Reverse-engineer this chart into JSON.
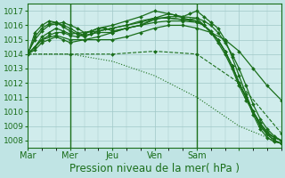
{
  "title": "",
  "xlabel": "Pression niveau de la mer( hPa )",
  "ylabel": "",
  "bg_color": "#c0e4e4",
  "plot_bg_color": "#d0ecec",
  "grid_color": "#a0c8c8",
  "line_color": "#1a6e1a",
  "xlim": [
    0,
    108
  ],
  "ylim": [
    1007.5,
    1017.5
  ],
  "yticks": [
    1008,
    1009,
    1010,
    1011,
    1012,
    1013,
    1014,
    1015,
    1016,
    1017
  ],
  "xtick_positions": [
    0,
    18,
    36,
    54,
    72,
    90
  ],
  "xtick_labels": [
    "Mar",
    "Mer",
    "Jeu",
    "Ven",
    "Sam",
    ""
  ],
  "vline_positions": [
    18,
    72
  ],
  "series": [
    {
      "x": [
        0,
        3,
        6,
        9,
        12,
        15,
        18,
        21,
        24,
        27,
        30,
        33,
        36,
        42,
        48,
        54,
        60,
        63,
        66,
        69,
        72,
        75,
        78,
        81,
        84,
        87,
        90,
        93,
        96,
        99,
        102,
        105,
        108
      ],
      "y": [
        1014.1,
        1015.0,
        1015.6,
        1016.0,
        1016.1,
        1016.2,
        1016.0,
        1015.8,
        1015.5,
        1015.6,
        1015.8,
        1015.8,
        1015.6,
        1015.8,
        1016.0,
        1016.5,
        1016.8,
        1016.7,
        1016.5,
        1016.4,
        1016.5,
        1016.0,
        1015.5,
        1015.0,
        1014.2,
        1013.2,
        1012.0,
        1011.0,
        1010.0,
        1009.2,
        1008.6,
        1008.2,
        1008.0
      ],
      "style": "-",
      "marker": "D",
      "markersize": 2.0,
      "lw": 0.9
    },
    {
      "x": [
        0,
        3,
        6,
        9,
        12,
        15,
        18,
        21,
        24,
        27,
        30,
        36,
        42,
        48,
        54,
        60,
        63,
        66,
        69,
        72,
        75,
        78,
        81,
        84,
        87,
        90,
        93,
        96,
        99,
        102,
        105,
        108
      ],
      "y": [
        1014.0,
        1014.5,
        1015.0,
        1015.3,
        1015.5,
        1015.5,
        1015.3,
        1015.2,
        1015.4,
        1015.6,
        1015.8,
        1016.0,
        1016.3,
        1016.6,
        1017.0,
        1016.8,
        1016.7,
        1016.6,
        1016.8,
        1017.0,
        1016.6,
        1016.2,
        1015.8,
        1015.0,
        1013.8,
        1012.5,
        1011.2,
        1010.0,
        1009.0,
        1008.5,
        1008.2,
        1008.0
      ],
      "style": "-",
      "marker": "D",
      "markersize": 2.0,
      "lw": 0.9
    },
    {
      "x": [
        0,
        3,
        6,
        9,
        12,
        15,
        18,
        24,
        30,
        36,
        42,
        48,
        54,
        60,
        66,
        72,
        75,
        78,
        81,
        84,
        87,
        90,
        93,
        96,
        99,
        102,
        105,
        108
      ],
      "y": [
        1014.0,
        1014.3,
        1014.8,
        1015.0,
        1015.2,
        1015.0,
        1014.8,
        1015.0,
        1015.2,
        1015.5,
        1015.8,
        1016.0,
        1016.4,
        1016.6,
        1016.6,
        1016.5,
        1016.3,
        1016.0,
        1015.5,
        1014.8,
        1014.0,
        1013.0,
        1011.8,
        1010.5,
        1009.5,
        1008.8,
        1008.3,
        1008.0
      ],
      "style": "-",
      "marker": "D",
      "markersize": 2.0,
      "lw": 0.9
    },
    {
      "x": [
        0,
        3,
        6,
        9,
        12,
        15,
        18,
        24,
        30,
        36,
        42,
        48,
        54,
        60,
        66,
        72,
        75,
        78,
        81,
        84,
        87,
        90,
        93,
        96,
        99,
        102,
        105,
        108
      ],
      "y": [
        1014.0,
        1014.5,
        1015.2,
        1015.5,
        1015.8,
        1015.6,
        1015.4,
        1015.5,
        1015.6,
        1015.8,
        1016.0,
        1016.3,
        1016.5,
        1016.5,
        1016.4,
        1016.3,
        1016.0,
        1015.5,
        1014.8,
        1014.0,
        1013.0,
        1011.8,
        1010.8,
        1010.0,
        1009.2,
        1008.5,
        1008.0,
        1007.8
      ],
      "style": "-",
      "marker": "D",
      "markersize": 2.0,
      "lw": 0.9
    },
    {
      "x": [
        0,
        6,
        12,
        18,
        24,
        30,
        36,
        42,
        48,
        54,
        60,
        66,
        72,
        78,
        84,
        90,
        96,
        102,
        108
      ],
      "y": [
        1014.0,
        1015.0,
        1015.3,
        1015.0,
        1015.0,
        1015.0,
        1015.0,
        1015.2,
        1015.5,
        1015.8,
        1016.0,
        1016.0,
        1015.8,
        1015.5,
        1015.0,
        1014.2,
        1013.0,
        1011.8,
        1010.8
      ],
      "style": "-",
      "marker": "D",
      "markersize": 2.0,
      "lw": 0.9
    },
    {
      "x": [
        0,
        18,
        36,
        54,
        72,
        90,
        108
      ],
      "y": [
        1014.0,
        1014.0,
        1014.0,
        1014.2,
        1014.0,
        1012.0,
        1008.5
      ],
      "style": "--",
      "marker": "D",
      "markersize": 2.0,
      "lw": 0.8
    },
    {
      "x": [
        0,
        18,
        36,
        54,
        72,
        90,
        108
      ],
      "y": [
        1014.0,
        1014.0,
        1013.5,
        1012.5,
        1011.0,
        1009.0,
        1007.8
      ],
      "style": ":",
      "marker": null,
      "markersize": 0,
      "lw": 0.8
    },
    {
      "x": [
        0,
        3,
        6,
        9,
        12,
        15,
        18,
        21,
        24,
        27,
        30,
        36,
        42,
        48,
        54,
        60,
        66,
        72,
        75,
        78,
        81,
        84,
        87,
        90,
        93,
        96,
        99,
        102,
        105,
        108
      ],
      "y": [
        1014.0,
        1015.5,
        1016.0,
        1016.3,
        1016.2,
        1015.9,
        1015.6,
        1015.4,
        1015.2,
        1015.4,
        1015.5,
        1015.5,
        1015.8,
        1016.0,
        1016.2,
        1016.3,
        1016.3,
        1016.2,
        1016.0,
        1015.5,
        1015.0,
        1014.2,
        1013.2,
        1012.0,
        1011.0,
        1010.0,
        1009.0,
        1008.4,
        1008.0,
        1007.8
      ],
      "style": "-",
      "marker": "D",
      "markersize": 2.0,
      "lw": 0.9
    },
    {
      "x": [
        0,
        3,
        6,
        9,
        12,
        15,
        18,
        21,
        24,
        27,
        30,
        36,
        42,
        48,
        54,
        60,
        66,
        72,
        75,
        78,
        81,
        84,
        87,
        90,
        93,
        96,
        99,
        102,
        105,
        108
      ],
      "y": [
        1014.0,
        1015.2,
        1015.8,
        1016.1,
        1016.2,
        1016.0,
        1015.8,
        1015.5,
        1015.3,
        1015.4,
        1015.6,
        1015.8,
        1016.0,
        1016.2,
        1016.5,
        1016.5,
        1016.4,
        1016.3,
        1016.0,
        1015.6,
        1015.0,
        1014.2,
        1013.2,
        1012.0,
        1011.0,
        1009.8,
        1008.8,
        1008.2,
        1007.9,
        1007.8
      ],
      "style": "-",
      "marker": "D",
      "markersize": 2.0,
      "lw": 0.9
    }
  ],
  "xlabel_fontsize": 8.5,
  "ytick_fontsize": 6.5,
  "xtick_fontsize": 7.0
}
